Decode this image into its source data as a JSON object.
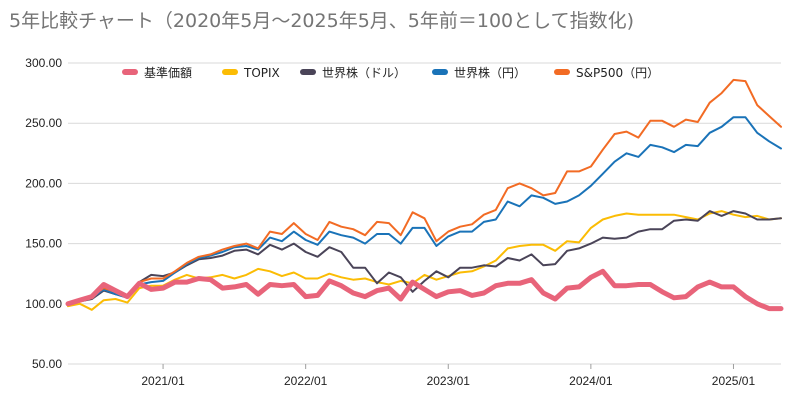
{
  "chart_data": {
    "type": "line",
    "title": "5年比較チャート（2020年5月～2025年5月、5年前＝100として指数化)",
    "xlabel": "",
    "ylabel": "",
    "ylim": [
      50,
      300
    ],
    "y_ticks": [
      "50.00",
      "100.00",
      "150.00",
      "200.00",
      "250.00",
      "300.00"
    ],
    "x_ticks": [
      {
        "label": "2021/01",
        "month_index": 8
      },
      {
        "label": "2022/01",
        "month_index": 20
      },
      {
        "label": "2023/01",
        "month_index": 32
      },
      {
        "label": "2024/01",
        "month_index": 44
      },
      {
        "label": "2025/01",
        "month_index": 56
      }
    ],
    "x_start": "2020/05",
    "grid": "horizontal",
    "legend_position": "top",
    "series": [
      {
        "name": "基準価額",
        "color": "#e8647a",
        "values": [
          100,
          103,
          106,
          116,
          111,
          106,
          117,
          112,
          113,
          118,
          118,
          121,
          120,
          113,
          114,
          116,
          108,
          116,
          115,
          116,
          106,
          107,
          119,
          115,
          109,
          106,
          111,
          113,
          104,
          118,
          112,
          106,
          110,
          111,
          107,
          109,
          115,
          117,
          117,
          120,
          109,
          104,
          113,
          114,
          122,
          127,
          115,
          115,
          116,
          116,
          110,
          105,
          106,
          114,
          118,
          114,
          114,
          106,
          100,
          96,
          96
        ]
      },
      {
        "name": "TOPIX",
        "color": "#fbbc04",
        "values": [
          98,
          100,
          95,
          103,
          104,
          101,
          113,
          115,
          115,
          120,
          124,
          121,
          122,
          124,
          121,
          124,
          129,
          127,
          123,
          126,
          121,
          121,
          125,
          122,
          120,
          121,
          118,
          116,
          119,
          117,
          124,
          120,
          123,
          126,
          127,
          131,
          136,
          146,
          148,
          149,
          149,
          144,
          152,
          151,
          163,
          170,
          173,
          175,
          174,
          174,
          174,
          174,
          172,
          170,
          175,
          177,
          174,
          172,
          173,
          170,
          171
        ]
      },
      {
        "name": "世界株（ドル）",
        "color": "#4a4458",
        "values": [
          100,
          102,
          104,
          111,
          108,
          106,
          118,
          124,
          123,
          126,
          132,
          137,
          138,
          140,
          144,
          145,
          141,
          149,
          145,
          150,
          143,
          139,
          147,
          143,
          130,
          130,
          117,
          126,
          122,
          110,
          119,
          127,
          122,
          130,
          130,
          132,
          131,
          138,
          136,
          141,
          132,
          133,
          144,
          146,
          150,
          155,
          154,
          155,
          160,
          162,
          162,
          169,
          170,
          169,
          177,
          173,
          177,
          175,
          170,
          170,
          171
        ]
      },
      {
        "name": "世界株（円）",
        "color": "#1a73b8",
        "values": [
          100,
          102,
          105,
          112,
          108,
          105,
          116,
          118,
          119,
          126,
          133,
          138,
          140,
          143,
          147,
          148,
          145,
          155,
          152,
          160,
          153,
          149,
          160,
          157,
          155,
          150,
          158,
          158,
          150,
          163,
          163,
          148,
          156,
          160,
          160,
          168,
          170,
          185,
          181,
          190,
          188,
          183,
          185,
          190,
          198,
          208,
          218,
          225,
          222,
          232,
          230,
          226,
          232,
          231,
          242,
          247,
          255,
          255,
          242,
          235,
          229
        ]
      },
      {
        "name": "S&P500（円）",
        "color": "#f26b24",
        "values": [
          100,
          103,
          106,
          113,
          110,
          107,
          118,
          121,
          121,
          127,
          134,
          139,
          141,
          145,
          148,
          150,
          146,
          160,
          158,
          167,
          158,
          153,
          168,
          164,
          162,
          157,
          168,
          167,
          157,
          176,
          171,
          152,
          160,
          164,
          166,
          174,
          178,
          196,
          200,
          196,
          190,
          192,
          210,
          210,
          214,
          228,
          241,
          243,
          238,
          252,
          252,
          247,
          253,
          251,
          267,
          275,
          286,
          285,
          265,
          256,
          247
        ]
      }
    ]
  }
}
